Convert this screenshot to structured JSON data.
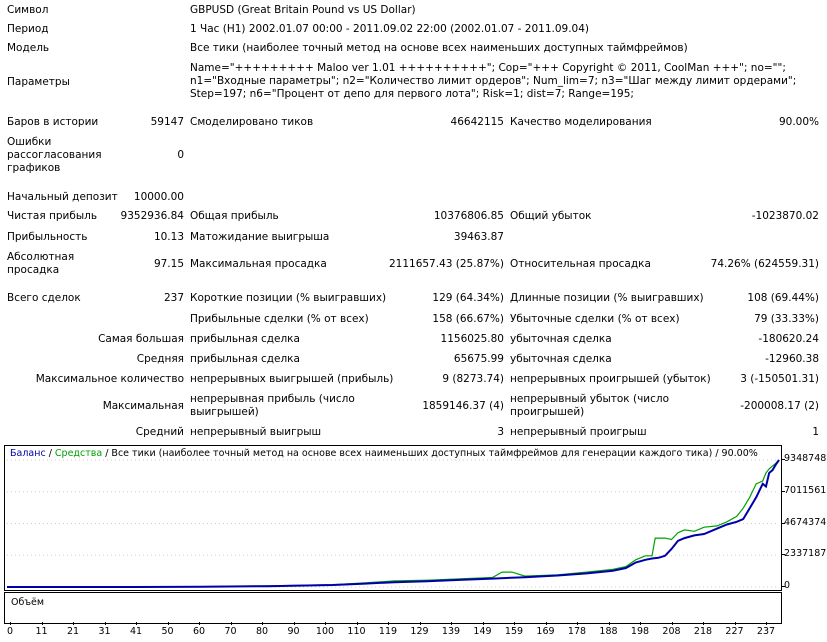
{
  "header": {
    "symbol": {
      "label": "Символ",
      "value": "GBPUSD (Great Britain Pound vs US Dollar)"
    },
    "period": {
      "label": "Период",
      "value": "1 Час (H1) 2002.01.07 00:00 - 2011.09.02 22:00 (2002.01.07 - 2011.09.04)"
    },
    "model": {
      "label": "Модель",
      "value": "Все тики (наиболее точный метод на основе всех наименьших доступных таймфреймов)"
    },
    "params": {
      "label": "Параметры",
      "value": "Name=\"+++++++++ Maloo ver 1.01 ++++++++++\"; Cop=\"+++ Copyright © 2011, CoolMan +++\"; no=\"\"; n1=\"Входные параметры\"; n2=\"Количество лимит ордеров\"; Num_lim=7; n3=\"Шаг между лимит ордерами\"; Step=197; n6=\"Процент от депо для первого лота\"; Risk=1; dist=7; Range=195;"
    }
  },
  "stats": {
    "bars": {
      "label": "Баров в истории",
      "value": "59147"
    },
    "ticks": {
      "label": "Смоделировано тиков",
      "value": "46642115"
    },
    "quality": {
      "label": "Качество моделирования",
      "value": "90.00%"
    },
    "errors": {
      "label": "Ошибки рассогласования графиков",
      "value": "0"
    },
    "deposit": {
      "label": "Начальный депозит",
      "value": "10000.00"
    },
    "net_profit": {
      "label": "Чистая прибыль",
      "value": "9352936.84"
    },
    "gross_profit": {
      "label": "Общая прибыль",
      "value": "10376806.85"
    },
    "gross_loss": {
      "label": "Общий убыток",
      "value": "-1023870.02"
    },
    "profit_factor": {
      "label": "Прибыльность",
      "value": "10.13"
    },
    "expected_payoff": {
      "label": "Матожидание выигрыша",
      "value": "39463.87"
    },
    "abs_dd": {
      "label": "Абсолютная просадка",
      "value": "97.15"
    },
    "max_dd": {
      "label": "Максимальная просадка",
      "value": "2111657.43 (25.87%)"
    },
    "rel_dd": {
      "label": "Относительная просадка",
      "value": "74.26% (624559.31)"
    },
    "total_trades": {
      "label": "Всего сделок",
      "value": "237"
    },
    "short_pos": {
      "label": "Короткие позиции (% выигравших)",
      "value": "129 (64.34%)"
    },
    "long_pos": {
      "label": "Длинные позиции (% выигравших)",
      "value": "108 (69.44%)"
    },
    "profit_trades": {
      "label": "Прибыльные сделки (% от всех)",
      "value": "158 (66.67%)"
    },
    "loss_trades": {
      "label": "Убыточные сделки (% от всех)",
      "value": "79 (33.33%)"
    },
    "largest_prefix": "Самая большая",
    "largest_profit": {
      "label": "прибыльная сделка",
      "value": "1156025.80"
    },
    "largest_loss": {
      "label": "убыточная сделка",
      "value": "-180620.24"
    },
    "average_prefix": "Средняя",
    "average_profit": {
      "label": "прибыльная сделка",
      "value": "65675.99"
    },
    "average_loss": {
      "label": "убыточная сделка",
      "value": "-12960.38"
    },
    "max_count_prefix": "Максимальное количество",
    "max_cons_wins": {
      "label": "непрерывных выигрышей (прибыль)",
      "value": "9 (8273.74)"
    },
    "max_cons_losses": {
      "label": "непрерывных проигрышей (убыток)",
      "value": "3 (-150501.31)"
    },
    "maximal_prefix": "Максимальная",
    "max_cons_profit": {
      "label": "непрерывная прибыль (число выигрышей)",
      "value": "1859146.37 (4)"
    },
    "max_cons_loss": {
      "label": "непрерывный убыток (число проигрышей)",
      "value": "-200008.17 (2)"
    },
    "avg_prefix": "Средний",
    "avg_cons_wins": {
      "label": "непрерывный выигрыш",
      "value": "3"
    },
    "avg_cons_losses": {
      "label": "непрерывный проигрыш",
      "value": "1"
    }
  },
  "chart_legend": {
    "balance": "Баланс",
    "sep1": " / ",
    "equity": "Средства",
    "rest": " / Все тики (наиболее точный метод на основе всех наименьших доступных таймфреймов для генерации каждого тика) / 90.00%"
  },
  "volume_label": "Объём",
  "colors": {
    "balance": "#0000aa",
    "equity": "#00a000",
    "grid": "#000000"
  },
  "chart_data": {
    "type": "line",
    "y_ticks": [
      "9348748",
      "7011561",
      "4674374",
      "2337187",
      "0"
    ],
    "x_ticks": [
      "0",
      "11",
      "21",
      "31",
      "41",
      "50",
      "60",
      "70",
      "80",
      "90",
      "100",
      "110",
      "119",
      "129",
      "139",
      "149",
      "159",
      "169",
      "178",
      "188",
      "198",
      "208",
      "218",
      "227",
      "237"
    ],
    "ylim": [
      0,
      9348748
    ],
    "xlim": [
      0,
      237
    ],
    "series": [
      {
        "name": "Баланс",
        "points": [
          [
            0,
            0
          ],
          [
            40,
            0
          ],
          [
            60,
            20000
          ],
          [
            80,
            60000
          ],
          [
            100,
            150000
          ],
          [
            110,
            250000
          ],
          [
            119,
            350000
          ],
          [
            129,
            420000
          ],
          [
            139,
            520000
          ],
          [
            149,
            620000
          ],
          [
            159,
            720000
          ],
          [
            169,
            850000
          ],
          [
            178,
            1000000
          ],
          [
            186,
            1200000
          ],
          [
            190,
            1400000
          ],
          [
            193,
            1800000
          ],
          [
            196,
            2000000
          ],
          [
            198,
            2100000
          ],
          [
            200,
            2150000
          ],
          [
            202,
            2300000
          ],
          [
            204,
            2800000
          ],
          [
            206,
            3400000
          ],
          [
            208,
            3600000
          ],
          [
            211,
            3800000
          ],
          [
            214,
            3900000
          ],
          [
            218,
            4300000
          ],
          [
            221,
            4600000
          ],
          [
            224,
            4800000
          ],
          [
            226,
            5000000
          ],
          [
            228,
            5800000
          ],
          [
            230,
            6600000
          ],
          [
            232,
            7600000
          ],
          [
            233,
            7400000
          ],
          [
            234,
            8400000
          ],
          [
            235,
            8600000
          ],
          [
            236,
            9000000
          ],
          [
            237,
            9348748
          ]
        ]
      },
      {
        "name": "Средства",
        "points": [
          [
            0,
            0
          ],
          [
            40,
            0
          ],
          [
            60,
            30000
          ],
          [
            80,
            80000
          ],
          [
            100,
            170000
          ],
          [
            110,
            300000
          ],
          [
            119,
            450000
          ],
          [
            129,
            500000
          ],
          [
            139,
            600000
          ],
          [
            149,
            700000
          ],
          [
            152,
            1100000
          ],
          [
            155,
            1100000
          ],
          [
            159,
            800000
          ],
          [
            169,
            900000
          ],
          [
            178,
            1100000
          ],
          [
            186,
            1300000
          ],
          [
            190,
            1500000
          ],
          [
            193,
            2000000
          ],
          [
            196,
            2300000
          ],
          [
            198,
            2300000
          ],
          [
            199,
            3600000
          ],
          [
            202,
            3600000
          ],
          [
            204,
            3500000
          ],
          [
            206,
            4000000
          ],
          [
            208,
            4200000
          ],
          [
            211,
            4100000
          ],
          [
            214,
            4400000
          ],
          [
            218,
            4500000
          ],
          [
            221,
            4800000
          ],
          [
            224,
            5200000
          ],
          [
            226,
            5800000
          ],
          [
            228,
            6600000
          ],
          [
            230,
            7600000
          ],
          [
            232,
            7800000
          ],
          [
            233,
            8400000
          ],
          [
            234,
            8700000
          ],
          [
            236,
            9100000
          ],
          [
            237,
            9348748
          ]
        ]
      }
    ]
  }
}
